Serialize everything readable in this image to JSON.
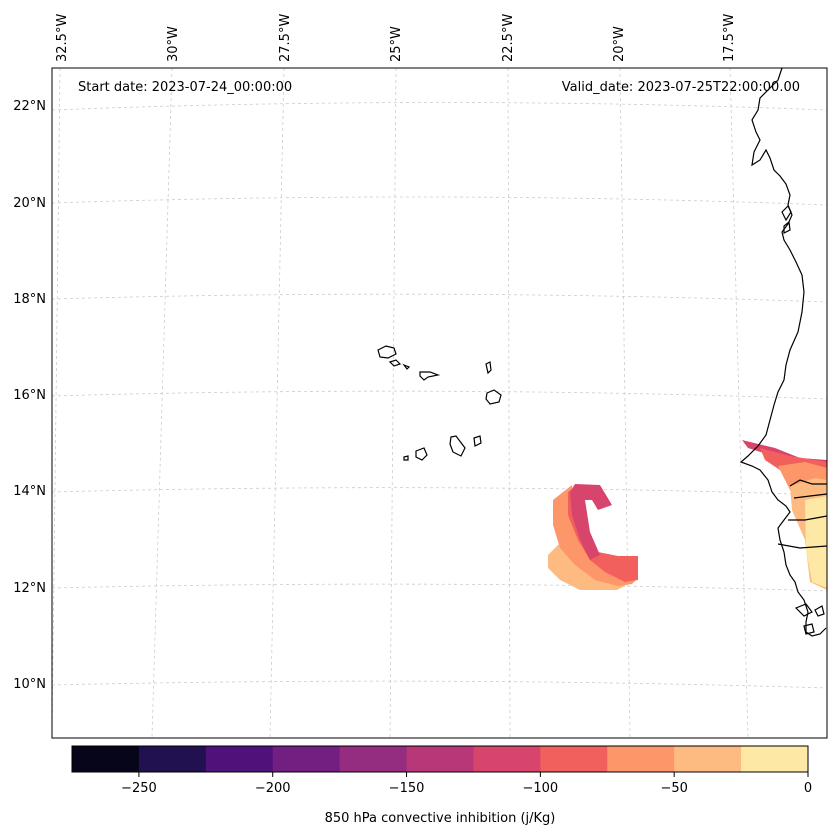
{
  "header": {
    "start_date": "Start date: 2023-07-24_00:00:00",
    "valid_date": "Valid_date: 2023-07-25T22:00:00.00"
  },
  "lon_ticks": [
    "32.5°W",
    "30°W",
    "27.5°W",
    "25°W",
    "22.5°W",
    "20°W",
    "17.5°W"
  ],
  "lat_ticks": [
    "22°N",
    "20°N",
    "18°N",
    "16°N",
    "14°N",
    "12°N",
    "10°N"
  ],
  "colorbar": {
    "label": "850 hPa convective inhibition (j/Kg)",
    "tick_labels": [
      "−250",
      "−200",
      "−150",
      "−100",
      "−50",
      "0"
    ],
    "tick_values": [
      -250,
      -200,
      -150,
      -100,
      -50,
      0
    ],
    "range": [
      -275,
      0
    ],
    "colors": [
      "#06051a",
      "#221150",
      "#4f127b",
      "#721f81",
      "#942c80",
      "#b73779",
      "#d8456c",
      "#f1605d",
      "#fd9668",
      "#febb81",
      "#fde9a5"
    ]
  }
}
